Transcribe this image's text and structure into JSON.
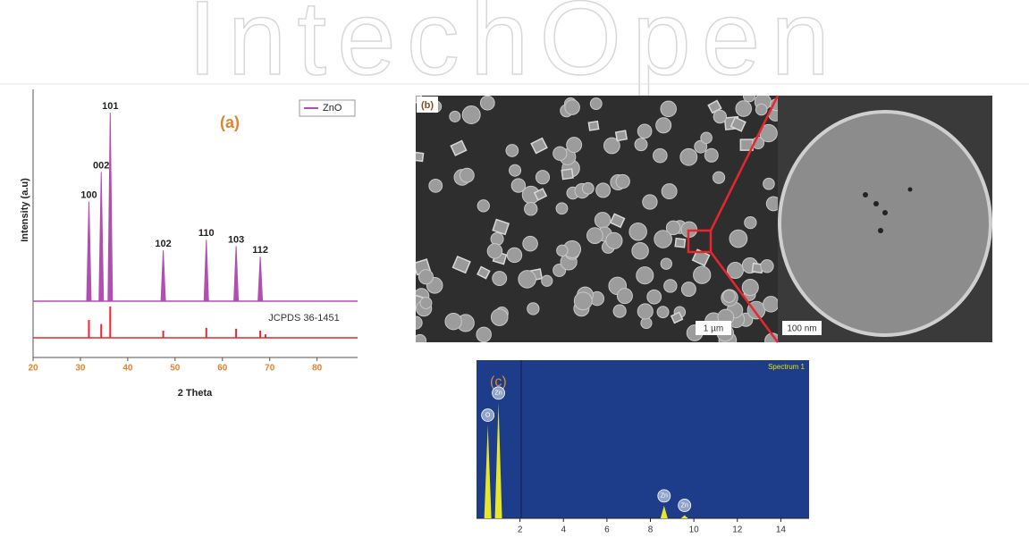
{
  "watermark": "IntechOpen",
  "xrd": {
    "panel_label": "(a)",
    "y_label": "Intensity (a.u)",
    "x_label": "2 Theta",
    "legend": "ZnO",
    "reference_label": "JCPDS 36-1451",
    "xlim": [
      20,
      88
    ],
    "ylim": [
      0,
      100
    ],
    "xticks": [
      20,
      30,
      40,
      50,
      60,
      70,
      80
    ],
    "peaks": [
      {
        "label": "100",
        "x": 31.8,
        "height": 47
      },
      {
        "label": "002",
        "x": 34.4,
        "height": 61
      },
      {
        "label": "101",
        "x": 36.3,
        "height": 89
      },
      {
        "label": "102",
        "x": 47.5,
        "height": 24
      },
      {
        "label": "110",
        "x": 56.6,
        "height": 29
      },
      {
        "label": "103",
        "x": 62.9,
        "height": 26
      },
      {
        "label": "112",
        "x": 68.0,
        "height": 21
      }
    ],
    "reference_lines": [
      {
        "x": 31.8,
        "height": 57
      },
      {
        "x": 34.4,
        "height": 44
      },
      {
        "x": 36.3,
        "height": 100
      },
      {
        "x": 47.5,
        "height": 23
      },
      {
        "x": 56.6,
        "height": 32
      },
      {
        "x": 62.9,
        "height": 29
      },
      {
        "x": 68.0,
        "height": 23
      },
      {
        "x": 69.1,
        "height": 11
      }
    ]
  },
  "sem": {
    "panel_label": "(b)",
    "scale_bar_left": "1 µm",
    "scale_bar_right": "100 nm"
  },
  "eds": {
    "panel_label": "(c)",
    "spectrum_label": "Spectrum 1",
    "xlim": [
      0,
      15.3
    ],
    "ylim": [
      0,
      100
    ],
    "xticks": [
      2,
      4,
      6,
      8,
      10,
      12,
      14
    ],
    "peaks": [
      {
        "label": "O",
        "x": 0.52,
        "height": 59
      },
      {
        "label": "Zn",
        "x": 1.01,
        "height": 73
      },
      {
        "label": "Zn",
        "x": 8.63,
        "height": 8
      },
      {
        "label": "Zn",
        "x": 9.57,
        "height": 2
      }
    ]
  }
}
